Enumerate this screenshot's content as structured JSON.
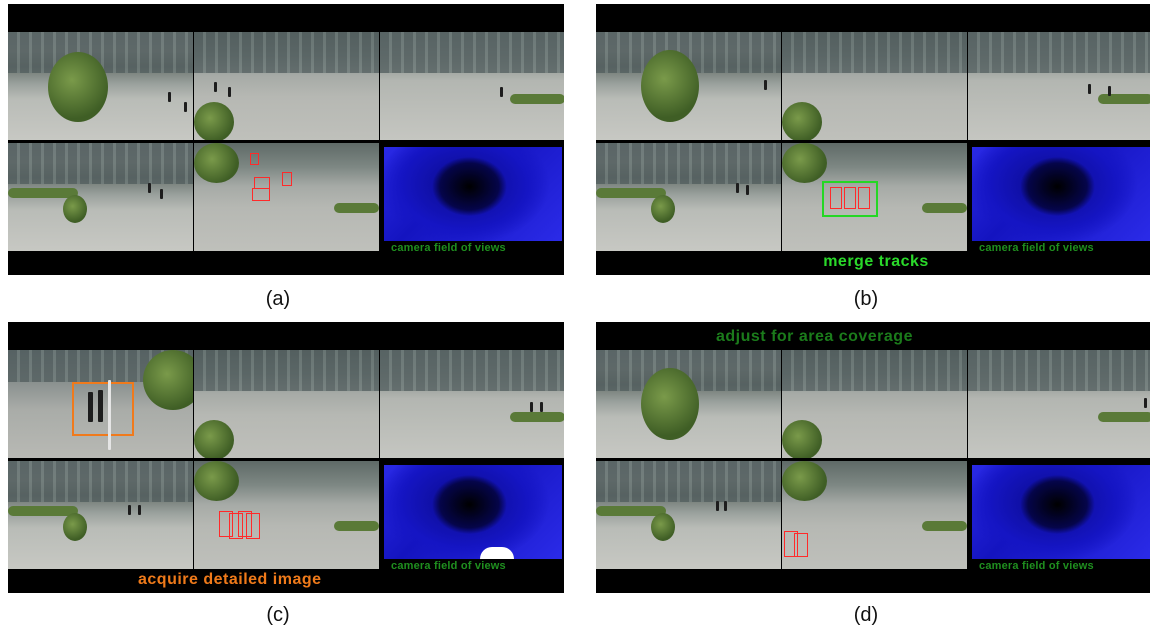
{
  "panels": [
    {
      "id": "a",
      "label": "(a)",
      "map_label": "camera field of views",
      "caption": ""
    },
    {
      "id": "b",
      "label": "(b)",
      "map_label": "camera field of views",
      "caption": "merge tracks"
    },
    {
      "id": "c",
      "label": "(c)",
      "map_label": "camera field of views",
      "caption": "acquire detailed image"
    },
    {
      "id": "d",
      "label": "(d)",
      "map_label": "camera field of views",
      "caption": "adjust for area coverage"
    }
  ],
  "colors": {
    "track_box": "#ff2a2a",
    "merge_box": "#24d724",
    "detail_box": "#f07a1c",
    "fov_map": "#1f1fd8"
  }
}
